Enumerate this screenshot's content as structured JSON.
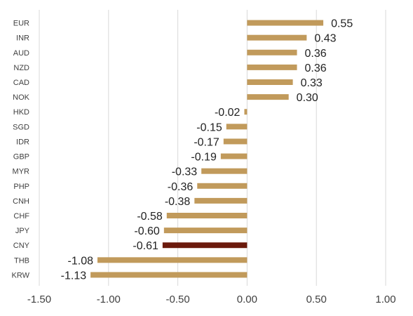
{
  "chart_data": {
    "type": "bar",
    "orientation": "horizontal",
    "title": "",
    "xlabel": "",
    "ylabel": "",
    "xlim": [
      -1.5,
      1.0
    ],
    "x_ticks": [
      -1.5,
      -1.0,
      -0.5,
      0.0,
      0.5,
      1.0
    ],
    "x_tick_labels": [
      "-1.50",
      "-1.00",
      "-0.50",
      "0.00",
      "0.50",
      "1.00"
    ],
    "grid": "vertical",
    "categories": [
      "EUR",
      "INR",
      "AUD",
      "NZD",
      "CAD",
      "NOK",
      "HKD",
      "SGD",
      "IDR",
      "GBP",
      "MYR",
      "PHP",
      "CNH",
      "CHF",
      "JPY",
      "CNY",
      "THB",
      "KRW"
    ],
    "values": [
      0.55,
      0.43,
      0.36,
      0.36,
      0.33,
      0.3,
      -0.02,
      -0.15,
      -0.17,
      -0.19,
      -0.33,
      -0.36,
      -0.38,
      -0.58,
      -0.6,
      -0.61,
      -1.08,
      -1.13
    ],
    "value_labels": [
      "0.55",
      "0.43",
      "0.36",
      "0.36",
      "0.33",
      "0.30",
      "-0.02",
      "-0.15",
      "-0.17",
      "-0.19",
      "-0.33",
      "-0.36",
      "-0.38",
      "-0.58",
      "-0.60",
      "-0.61",
      "-1.08",
      "-1.13"
    ],
    "highlight_category": "CNY",
    "colors": {
      "bar": "#c19a5b",
      "highlight": "#6b1a0c",
      "grid": "#d9d9d9",
      "axis": "#bfbfbf"
    }
  }
}
